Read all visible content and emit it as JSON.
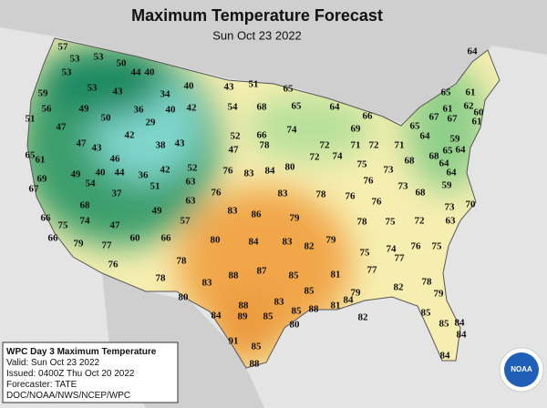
{
  "header": {
    "title": "Maximum Temperature Forecast",
    "subtitle": "Sun Oct 23 2022"
  },
  "temperatures": [
    57,
    53,
    53,
    50,
    44,
    40,
    53,
    59,
    53,
    43,
    34,
    40,
    43,
    51,
    65,
    64,
    56,
    49,
    36,
    40,
    42,
    54,
    68,
    65,
    64,
    51,
    50,
    29,
    66,
    65,
    61,
    61,
    62,
    60,
    47,
    42,
    52,
    66,
    74,
    69,
    67,
    67,
    61,
    65,
    64,
    47,
    43,
    38,
    43,
    47,
    78,
    72,
    71,
    72,
    71,
    59,
    65,
    65,
    61,
    46,
    72,
    74,
    64,
    68,
    68,
    49,
    40,
    44,
    42,
    52,
    76,
    83,
    84,
    80,
    75,
    73,
    64,
    69,
    67,
    54,
    36,
    63,
    76,
    64,
    59,
    37,
    51,
    76,
    83,
    78,
    76,
    73,
    68,
    70,
    63,
    68,
    49,
    83,
    86,
    79,
    76,
    73,
    66,
    74,
    47,
    57,
    78,
    75,
    72,
    63,
    75,
    66,
    77,
    60,
    66,
    80,
    84,
    83,
    82,
    79,
    75,
    74,
    76,
    75,
    79,
    76,
    78,
    77,
    77,
    78,
    83,
    88,
    87,
    85,
    81,
    80,
    85,
    79,
    82,
    78,
    79,
    88,
    83,
    85,
    88,
    81,
    84,
    84,
    89,
    85,
    80,
    82,
    85,
    84,
    85,
    84,
    84,
    91,
    85,
    88
  ],
  "info_box": {
    "lines": [
      "WPC Day 3 Maximum Temperature",
      "Valid: Sun Oct 23 2022",
      "Issued: 0400Z Thu Oct 20 2022",
      "Forecaster: TATE",
      "DOC/NOAA/NWS/NCEP/WPC"
    ]
  },
  "logo": {
    "text": "NOAA"
  }
}
